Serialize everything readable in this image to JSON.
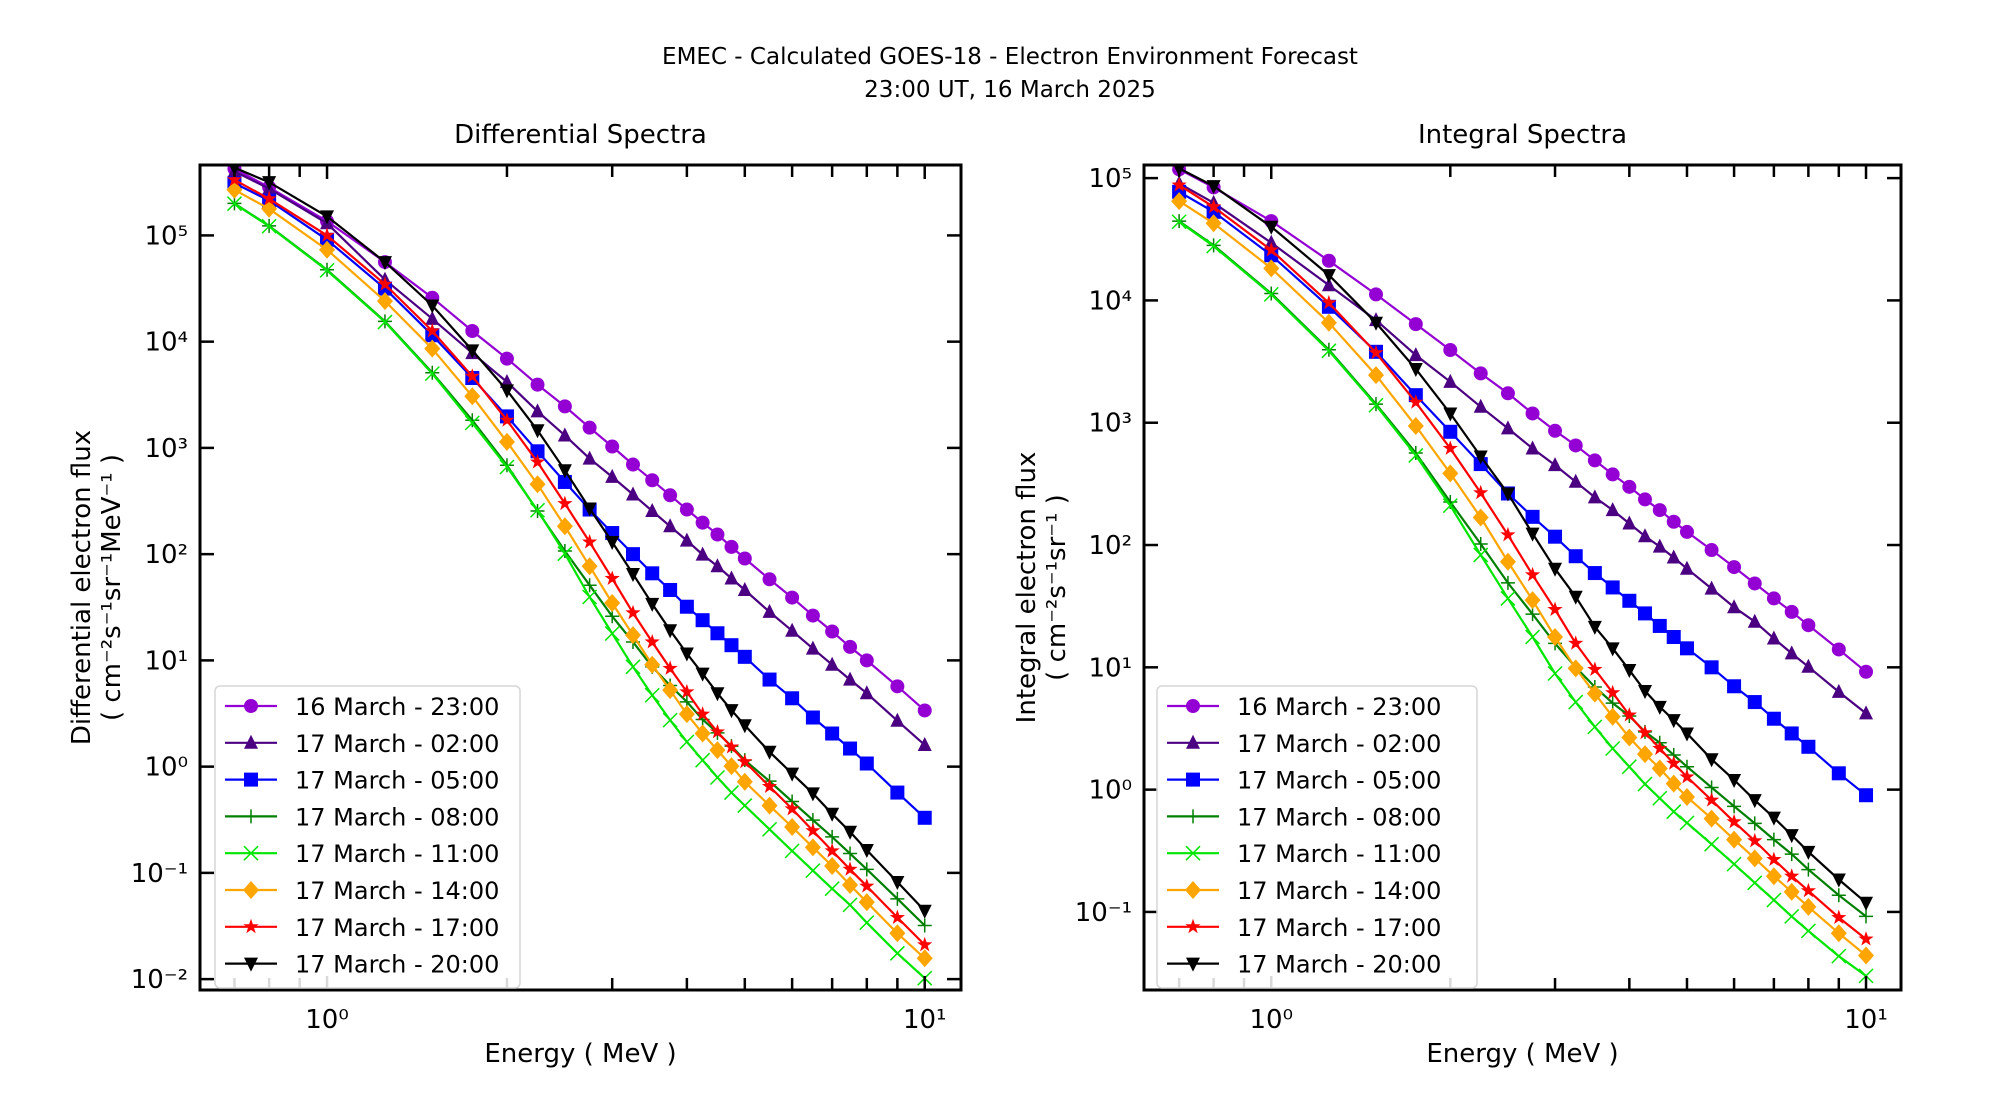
{
  "figure": {
    "title_line1": "EMEC - Calculated GOES-18 - Electron Environment Forecast",
    "title_line2": "23:00 UT, 16 March 2025"
  },
  "chart_data": [
    {
      "type": "line",
      "title": "Differential Spectra",
      "xlabel": "Energy ( MeV )",
      "ylabel_line1": "Differential electron flux",
      "ylabel_line2": "( cm⁻²s⁻¹sr⁻¹MeV⁻¹ )",
      "xscale": "log",
      "yscale": "log",
      "xlim": [
        0.613,
        11.5
      ],
      "ylim": [
        0.0079,
        460000
      ],
      "xticks": [
        {
          "value": 1,
          "label": "10⁰"
        },
        {
          "value": 10,
          "label": "10¹"
        }
      ],
      "yticks": [
        {
          "value": 0.01,
          "label": "10⁻²"
        },
        {
          "value": 0.1,
          "label": "10⁻¹"
        },
        {
          "value": 1,
          "label": "10⁰"
        },
        {
          "value": 10,
          "label": "10¹"
        },
        {
          "value": 100,
          "label": "10²"
        },
        {
          "value": 1000,
          "label": "10³"
        },
        {
          "value": 10000,
          "label": "10⁴"
        },
        {
          "value": 100000,
          "label": "10⁵"
        }
      ],
      "grid": false,
      "legend_position": "lower-left",
      "x": [
        0.7,
        0.8,
        1.0,
        1.25,
        1.5,
        1.75,
        2.0,
        2.25,
        2.5,
        2.75,
        3.0,
        3.25,
        3.5,
        3.75,
        4.0,
        4.25,
        4.5,
        4.75,
        5.0,
        5.5,
        6.0,
        6.5,
        7.0,
        7.5,
        8.0,
        9.0,
        10.0
      ],
      "series": [
        {
          "name": "16 March - 23:00",
          "color": "#9400d3",
          "marker": "circle",
          "values": [
            424000,
            284000,
            136000,
            56100,
            25900,
            12600,
            6920,
            3940,
            2460,
            1550,
            1030,
            697,
            496,
            358,
            263,
            198,
            153,
            117,
            91,
            58,
            39,
            26.4,
            18.7,
            13.4,
            10.0,
            5.7,
            3.38
          ]
        },
        {
          "name": "17 March - 02:00",
          "color": "#4b0082",
          "marker": "triangle-up",
          "values": [
            400000,
            275000,
            130000,
            38300,
            16400,
            7800,
            4170,
            2210,
            1310,
            793,
            533,
            364,
            255,
            183,
            134,
            99,
            77,
            59,
            46,
            28.6,
            19,
            12.9,
            9.1,
            6.6,
            4.9,
            2.7,
            1.6
          ]
        },
        {
          "name": "17 March - 05:00",
          "color": "#0000ff",
          "marker": "square",
          "values": [
            310000,
            213000,
            91000,
            31600,
            11500,
            4550,
            1980,
            929,
            478,
            263,
            158,
            100,
            66,
            46,
            32,
            23.9,
            18,
            13.9,
            10.8,
            6.6,
            4.4,
            2.9,
            2.05,
            1.48,
            1.07,
            0.57,
            0.33
          ]
        },
        {
          "name": "17 March - 08:00",
          "color": "#008000",
          "marker": "plus",
          "values": [
            200000,
            123000,
            47500,
            15500,
            5100,
            1820,
            686,
            255,
            107,
            51,
            26,
            14.9,
            8.7,
            5.8,
            4.07,
            2.78,
            2.08,
            1.56,
            1.15,
            0.73,
            0.47,
            0.314,
            0.218,
            0.152,
            0.108,
            0.057,
            0.032
          ]
        },
        {
          "name": "17 March - 11:00",
          "color": "#00e600",
          "marker": "x",
          "values": [
            199000,
            122000,
            46900,
            15300,
            5000,
            1720,
            661,
            259,
            101,
            39.5,
            17.9,
            8.7,
            4.7,
            2.74,
            1.71,
            1.15,
            0.79,
            0.57,
            0.43,
            0.257,
            0.161,
            0.105,
            0.071,
            0.05,
            0.034,
            0.0175,
            0.0102
          ]
        },
        {
          "name": "17 March - 14:00",
          "color": "#ffa500",
          "marker": "diamond",
          "values": [
            269000,
            178000,
            73300,
            24100,
            8590,
            3060,
            1140,
            455,
            183,
            77,
            34.7,
            17.3,
            9.1,
            5.25,
            3.12,
            2.05,
            1.43,
            1.01,
            0.72,
            0.43,
            0.27,
            0.174,
            0.116,
            0.077,
            0.053,
            0.027,
            0.0157
          ]
        },
        {
          "name": "17 March - 17:00",
          "color": "#ff0000",
          "marker": "star",
          "values": [
            334000,
            221000,
            100000,
            34600,
            12600,
            4720,
            1820,
            736,
            299,
            130,
            59,
            28,
            14.9,
            8.4,
            5.05,
            3.12,
            2.12,
            1.53,
            1.11,
            0.65,
            0.4,
            0.249,
            0.161,
            0.108,
            0.075,
            0.038,
            0.021
          ]
        },
        {
          "name": "17 March - 20:00",
          "color": "#000000",
          "marker": "triangle-down",
          "values": [
            434000,
            317000,
            151000,
            56100,
            21900,
            8280,
            3480,
            1465,
            616,
            269,
            130,
            65,
            34,
            19.2,
            11.6,
            7.5,
            4.9,
            3.4,
            2.45,
            1.38,
            0.86,
            0.56,
            0.36,
            0.244,
            0.164,
            0.082,
            0.044
          ]
        }
      ]
    },
    {
      "type": "line",
      "title": "Integral Spectra",
      "xlabel": "Energy ( MeV )",
      "ylabel_line1": "Integral electron flux",
      "ylabel_line2": "( cm⁻²s⁻¹sr⁻¹ )",
      "xscale": "log",
      "yscale": "log",
      "xlim": [
        0.611,
        11.45
      ],
      "ylim": [
        0.023,
        128000
      ],
      "xticks": [
        {
          "value": 1,
          "label": "10⁰"
        },
        {
          "value": 10,
          "label": "10¹"
        }
      ],
      "yticks": [
        {
          "value": 0.1,
          "label": "10⁻¹"
        },
        {
          "value": 1,
          "label": "10⁰"
        },
        {
          "value": 10,
          "label": "10¹"
        },
        {
          "value": 100,
          "label": "10²"
        },
        {
          "value": 1000,
          "label": "10³"
        },
        {
          "value": 10000,
          "label": "10⁴"
        },
        {
          "value": 100000,
          "label": "10⁵"
        }
      ],
      "grid": false,
      "legend_position": "lower-left",
      "x": [
        0.7,
        0.8,
        1.0,
        1.25,
        1.5,
        1.75,
        2.0,
        2.25,
        2.5,
        2.75,
        3.0,
        3.25,
        3.5,
        3.75,
        4.0,
        4.25,
        4.5,
        4.75,
        5.0,
        5.5,
        6.0,
        6.5,
        7.0,
        7.5,
        8.0,
        9.0,
        10.0
      ],
      "series": [
        {
          "name": "16 March - 23:00",
          "color": "#9400d3",
          "marker": "circle",
          "values": [
            118000,
            83900,
            44500,
            21100,
            11200,
            6400,
            3930,
            2530,
            1740,
            1190,
            859,
            652,
            492,
            378,
            299,
            236,
            193,
            155,
            128,
            91,
            66,
            48.5,
            36.6,
            28.4,
            22.1,
            14,
            9.2
          ]
        },
        {
          "name": "17 March - 02:00",
          "color": "#4b0082",
          "marker": "triangle-up",
          "values": [
            90600,
            62800,
            29600,
            13300,
            6900,
            3570,
            2160,
            1350,
            898,
            616,
            450,
            329,
            245,
            193,
            150,
            118,
            97,
            79,
            64,
            44,
            31,
            23.6,
            17.2,
            13,
            10.1,
            6.3,
            4.2
          ]
        },
        {
          "name": "17 March - 05:00",
          "color": "#0000ff",
          "marker": "square",
          "values": [
            77300,
            53000,
            23400,
            8870,
            3800,
            1680,
            843,
            459,
            264,
            170,
            117,
            81,
            59,
            45,
            35,
            27.6,
            21.8,
            17.7,
            14.3,
            10,
            7.0,
            5.2,
            3.8,
            2.88,
            2.24,
            1.36,
            0.9
          ]
        },
        {
          "name": "17 March - 08:00",
          "color": "#008000",
          "marker": "plus",
          "values": [
            44500,
            28200,
            11400,
            3950,
            1420,
            565,
            225,
            102,
            49,
            27.2,
            15.7,
            10,
            6.9,
            5.1,
            4.0,
            2.97,
            2.42,
            1.92,
            1.54,
            1.04,
            0.73,
            0.53,
            0.39,
            0.297,
            0.222,
            0.137,
            0.092
          ]
        },
        {
          "name": "17 March - 11:00",
          "color": "#00e600",
          "marker": "x",
          "values": [
            44000,
            27800,
            11200,
            3870,
            1390,
            540,
            210,
            83,
            36.6,
            17.7,
            8.9,
            5.2,
            3.26,
            2.17,
            1.54,
            1.11,
            0.85,
            0.66,
            0.535,
            0.358,
            0.246,
            0.173,
            0.125,
            0.092,
            0.07,
            0.0435,
            0.03
          ]
        },
        {
          "name": "17 March - 14:00",
          "color": "#ffa500",
          "marker": "diamond",
          "values": [
            64900,
            42700,
            18300,
            6560,
            2450,
            940,
            385,
            168,
            73,
            35.4,
            17.7,
            9.8,
            6.1,
            3.94,
            2.67,
            1.95,
            1.49,
            1.12,
            0.87,
            0.58,
            0.39,
            0.274,
            0.196,
            0.146,
            0.11,
            0.067,
            0.044
          ]
        },
        {
          "name": "17 March - 17:00",
          "color": "#ff0000",
          "marker": "star",
          "values": [
            87700,
            58200,
            25800,
            9550,
            3730,
            1470,
            616,
            267,
            121,
            57,
            29.7,
            15.7,
            9.6,
            6.2,
            4.07,
            2.92,
            2.17,
            1.64,
            1.27,
            0.82,
            0.545,
            0.381,
            0.268,
            0.196,
            0.149,
            0.09,
            0.06
          ]
        },
        {
          "name": "17 March - 20:00",
          "color": "#000000",
          "marker": "triangle-down",
          "values": [
            120000,
            86000,
            40000,
            16100,
            6560,
            2750,
            1190,
            530,
            264,
            124,
            64,
            37.8,
            21.4,
            14.3,
            9.5,
            6.4,
            4.75,
            3.7,
            2.88,
            1.77,
            1.2,
            0.82,
            0.59,
            0.425,
            0.31,
            0.184,
            0.119
          ]
        }
      ]
    }
  ]
}
